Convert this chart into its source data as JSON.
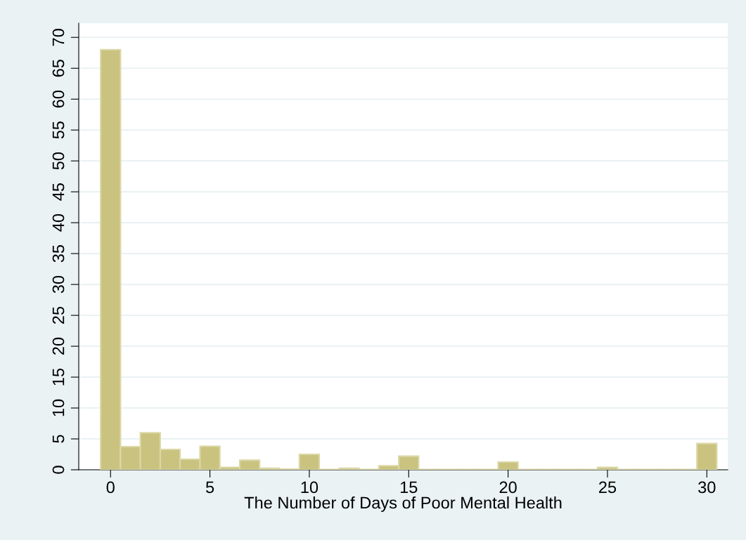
{
  "chart_data": {
    "type": "histogram",
    "xlabel": "The Number of Days of Poor Mental Health",
    "bins": [
      -0.5,
      0.5,
      1.5,
      2.5,
      3.5,
      4.5,
      5.5,
      6.5,
      7.5,
      8.5,
      9.5,
      10.5,
      11.5,
      12.5,
      13.5,
      14.5,
      15.5,
      16.5,
      17.5,
      18.5,
      19.5,
      20.5,
      21.5,
      22.5,
      23.5,
      24.5,
      25.5,
      26.5,
      27.5,
      28.5,
      29.5,
      30.5
    ],
    "values": [
      68,
      3.75,
      6.0,
      3.3,
      1.7,
      3.8,
      0.4,
      1.55,
      0.25,
      0.1,
      2.5,
      0.05,
      0.25,
      0.05,
      0.65,
      2.2,
      0.05,
      0.05,
      0.05,
      0.05,
      1.25,
      0.05,
      0.05,
      0.05,
      0.05,
      0.4,
      0.05,
      0.05,
      0.05,
      0.05,
      4.25
    ],
    "color": "#c9c37f",
    "xlim": [
      -1.6,
      31.05
    ],
    "ylim": [
      0,
      72.3
    ],
    "xticks": [
      0,
      5,
      10,
      15,
      20,
      25,
      30
    ],
    "yticks": [
      0,
      5,
      10,
      15,
      20,
      25,
      30,
      35,
      40,
      45,
      50,
      55,
      60,
      65,
      70
    ],
    "grid": "y"
  }
}
